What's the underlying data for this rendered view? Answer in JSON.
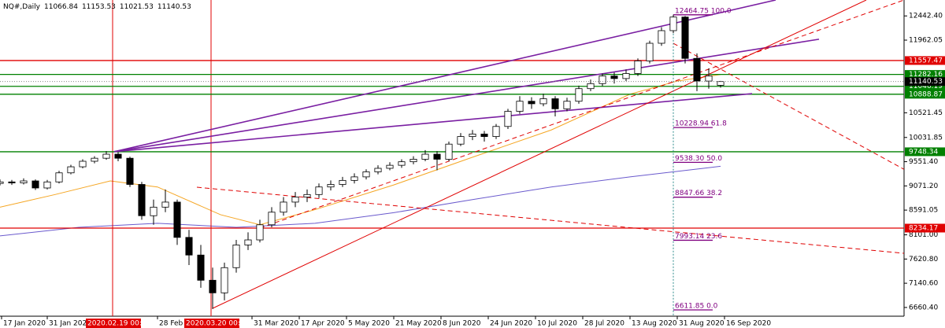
{
  "chart_data": {
    "type": "candlestick",
    "symbol": "NQ#,Daily",
    "up_color": "#ffffff",
    "down_color": "#000000",
    "wick_color": "#000000",
    "x": [
      0,
      3,
      6,
      9,
      12,
      15,
      18,
      21,
      24,
      27,
      30,
      33,
      36,
      39,
      42,
      45,
      48,
      51,
      54,
      57,
      60,
      63,
      66,
      69,
      72,
      75,
      78,
      81,
      84,
      87,
      90,
      93,
      96,
      99,
      102,
      105,
      108,
      111,
      114,
      117,
      120,
      123,
      126,
      129,
      132,
      135,
      138,
      141,
      144,
      147,
      150,
      153,
      156,
      159,
      162,
      165,
      168,
      171,
      174,
      177,
      180,
      183
    ],
    "open": [
      9120,
      9150,
      9130,
      9170,
      9030,
      9150,
      9330,
      9450,
      9560,
      9620,
      9700,
      9620,
      9100,
      8480,
      8650,
      8750,
      8050,
      7700,
      7200,
      6950,
      7450,
      7900,
      8000,
      8300,
      8550,
      8750,
      8850,
      8900,
      9050,
      9100,
      9180,
      9250,
      9350,
      9420,
      9480,
      9550,
      9600,
      9700,
      9600,
      9900,
      10050,
      10100,
      10050,
      10250,
      10550,
      10750,
      10700,
      10800,
      10600,
      10750,
      11000,
      11100,
      11250,
      11200,
      11300,
      11550,
      11900,
      12150,
      12420,
      11600,
      11150,
      11066.84
    ],
    "high": [
      9200,
      9190,
      9220,
      9200,
      9190,
      9370,
      9490,
      9600,
      9660,
      9760,
      9740,
      9650,
      9150,
      8800,
      9000,
      8800,
      8200,
      7900,
      7450,
      7550,
      8000,
      8150,
      8400,
      8650,
      8850,
      8950,
      9000,
      9120,
      9180,
      9250,
      9320,
      9400,
      9480,
      9540,
      9600,
      9660,
      9780,
      9760,
      9950,
      10120,
      10180,
      10160,
      10300,
      10600,
      10850,
      10830,
      10900,
      10850,
      10820,
      11060,
      11180,
      11300,
      11320,
      11380,
      11600,
      11950,
      12220,
      12465,
      12440,
      11700,
      11400,
      11153.53
    ],
    "low": [
      9080,
      9090,
      9100,
      8990,
      9000,
      9120,
      9300,
      9420,
      9520,
      9590,
      9560,
      9050,
      8400,
      8300,
      8550,
      7900,
      7500,
      7050,
      6630,
      6800,
      7350,
      7800,
      7950,
      8250,
      8480,
      8650,
      8750,
      8830,
      8980,
      9050,
      9120,
      9200,
      9300,
      9380,
      9430,
      9500,
      9560,
      9380,
      9560,
      9860,
      9980,
      9950,
      10000,
      10200,
      10500,
      10600,
      10650,
      10450,
      10550,
      10700,
      10950,
      11050,
      11100,
      11150,
      11250,
      11500,
      11850,
      12100,
      11500,
      10950,
      11000,
      11021.53
    ],
    "close": [
      9150,
      9130,
      9170,
      9030,
      9150,
      9330,
      9450,
      9560,
      9620,
      9700,
      9620,
      9100,
      8480,
      8650,
      8750,
      8050,
      7700,
      7200,
      6950,
      7450,
      7900,
      8000,
      8300,
      8550,
      8750,
      8850,
      8900,
      9050,
      9100,
      9180,
      9250,
      9350,
      9420,
      9480,
      9550,
      9600,
      9700,
      9600,
      9900,
      10050,
      10100,
      10050,
      10250,
      10550,
      10750,
      10700,
      10800,
      10600,
      10750,
      11000,
      11100,
      11250,
      11200,
      11300,
      11550,
      11900,
      12150,
      12420,
      11600,
      11150,
      11250,
      11140.53
    ],
    "xlim": [
      0,
      229.6
    ],
    "ylim": [
      6487,
      12758
    ],
    "yticks": [
      {
        "value": 12442.4,
        "label": "12442.40"
      },
      {
        "value": 11962.05,
        "label": "11962.05"
      },
      {
        "value": 10521.45,
        "label": "10521.45"
      },
      {
        "value": 10031.85,
        "label": "10031.85"
      },
      {
        "value": 9551.4,
        "label": "9551.40"
      },
      {
        "value": 9071.2,
        "label": "9071.20"
      },
      {
        "value": 8591.05,
        "label": "8591.05"
      },
      {
        "value": 8101,
        "label": "8101.00"
      },
      {
        "value": 7620.8,
        "label": "7620.80"
      },
      {
        "value": 7140.6,
        "label": "7140.60"
      },
      {
        "value": 6660.4,
        "label": "6660.40"
      }
    ],
    "xticks": [
      {
        "value": 0.4,
        "label": "17 Jan 2020"
      },
      {
        "value": 12,
        "label": "31 Jan 2020"
      },
      {
        "value": 40,
        "label": "28 Feb 2020"
      },
      {
        "value": 64,
        "label": "31 Mar 2020"
      },
      {
        "value": 76,
        "label": "17 Apr 2020"
      },
      {
        "value": 88,
        "label": "5 May 2020"
      },
      {
        "value": 100,
        "label": "21 May 2020"
      },
      {
        "value": 112,
        "label": "8 Jun 2020"
      },
      {
        "value": 124,
        "label": "24 Jun 2020"
      },
      {
        "value": 136,
        "label": "10 Jul 2020"
      },
      {
        "value": 148,
        "label": "28 Jul 2020"
      },
      {
        "value": 160,
        "label": "13 Aug 2020"
      },
      {
        "value": 172,
        "label": "31 Aug 2020"
      },
      {
        "value": 184,
        "label": "16 Sep 2020"
      }
    ],
    "vlines": [
      {
        "value": 28.6,
        "label": "2020.02.19 00:00"
      },
      {
        "value": 53.6,
        "label": "2020.03.20 00:00"
      }
    ],
    "vline_color": "#e00000",
    "hlines": [
      {
        "value": 11557.47,
        "color": "#e00000"
      },
      {
        "value": 11282.16,
        "color": "#008000"
      },
      {
        "value": 11046.19,
        "color": "#008000"
      },
      {
        "value": 10888.87,
        "color": "#008000"
      },
      {
        "value": 9748.34,
        "color": "#008000"
      },
      {
        "value": 8234.17,
        "color": "#e00000"
      }
    ],
    "moving_averages": [
      {
        "color": "#f5a623",
        "x": [
          0,
          14,
          28,
          40,
          56,
          66,
          80,
          100,
          120,
          140,
          160,
          172,
          183
        ],
        "values": [
          8650,
          8900,
          9170,
          9050,
          8500,
          8300,
          8600,
          9090,
          9640,
          10180,
          10890,
          11150,
          11280
        ]
      },
      {
        "color": "#6a5acd",
        "x": [
          0,
          20,
          40,
          60,
          80,
          100,
          120,
          140,
          160,
          183
        ],
        "values": [
          8080,
          8250,
          8330,
          8250,
          8330,
          8540,
          8800,
          9050,
          9250,
          9460
        ]
      }
    ],
    "trendlines": [
      {
        "color": "#7a1fa2",
        "dashed": false,
        "x": [
          29,
          197
        ],
        "values": [
          9750,
          12758
        ]
      },
      {
        "color": "#7a1fa2",
        "dashed": false,
        "x": [
          29,
          208
        ],
        "values": [
          9750,
          11980
        ]
      },
      {
        "color": "#7a1fa2",
        "dashed": false,
        "x": [
          29,
          191
        ],
        "values": [
          9750,
          10900
        ]
      },
      {
        "color": "#e00000",
        "dashed": false,
        "x": [
          54,
          220
        ],
        "values": [
          6643,
          12758
        ]
      },
      {
        "color": "#e00000",
        "dashed": true,
        "x": [
          66,
          229.6
        ],
        "values": [
          8234,
          12758
        ]
      },
      {
        "color": "#e00000",
        "dashed": true,
        "x": [
          50,
          229.6
        ],
        "values": [
          9045,
          7735
        ]
      },
      {
        "color": "#e00000",
        "dashed": true,
        "x": [
          171,
          229.6
        ],
        "values": [
          11900,
          9400
        ]
      }
    ],
    "fib": {
      "color": "#800080",
      "line_color": "#2e8b8b",
      "x": [
        171,
        181
      ],
      "levels": [
        {
          "value": 12464.75,
          "label": "12464.75 100.0"
        },
        {
          "value": 10228.94,
          "label": "10228.94 61.8"
        },
        {
          "value": 9538.3,
          "label": "9538.30 50.0"
        },
        {
          "value": 8847.66,
          "label": "8847.66 38.2"
        },
        {
          "value": 7993.14,
          "label": "7993.14 23.6"
        },
        {
          "value": 6611.85,
          "label": "6611.85 0.0"
        }
      ]
    }
  }
}
